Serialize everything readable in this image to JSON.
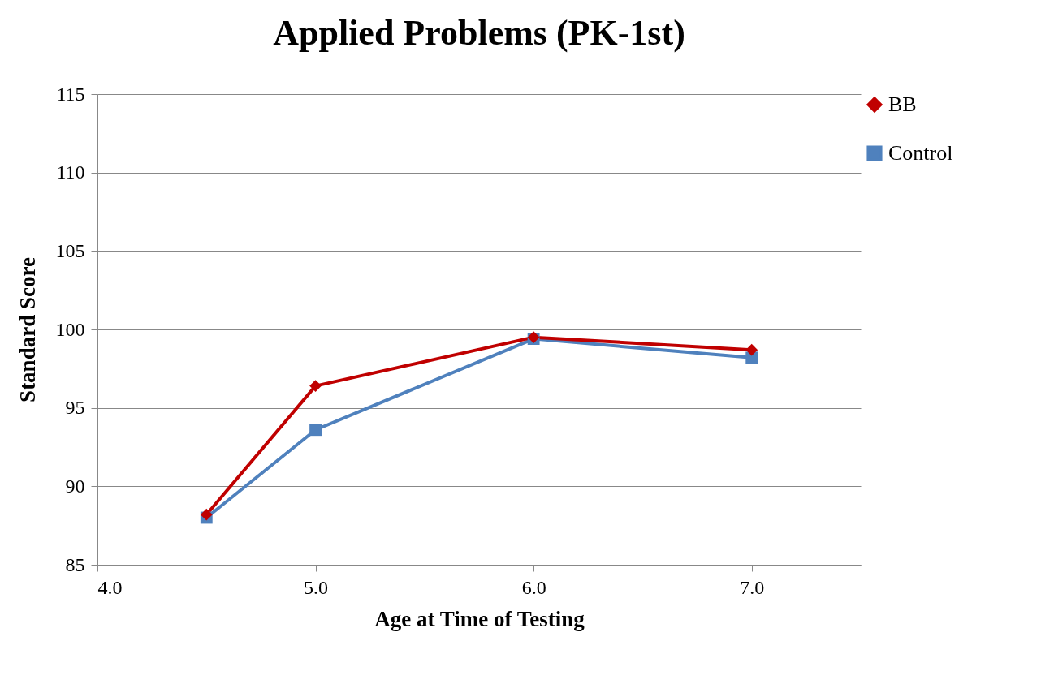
{
  "chart_data": {
    "type": "line",
    "title": "Applied Problems (PK-1st)",
    "xlabel": "Age at Time of Testing",
    "ylabel": "Standard Score",
    "x": [
      4.5,
      5.0,
      6.0,
      7.0
    ],
    "series": [
      {
        "name": "BB",
        "color": "#c00000",
        "marker": "diamond",
        "values": [
          88.2,
          96.4,
          99.5,
          98.7
        ]
      },
      {
        "name": "Control",
        "color": "#4f81bd",
        "marker": "square",
        "values": [
          88.0,
          93.6,
          99.4,
          98.2
        ]
      }
    ],
    "xlim": [
      4,
      7.5
    ],
    "xticks": [
      {
        "value": 4,
        "label": "4.0"
      },
      {
        "value": 5,
        "label": "5.0"
      },
      {
        "value": 6,
        "label": "6.0"
      },
      {
        "value": 7,
        "label": "7.0"
      }
    ],
    "ylim": [
      85,
      115
    ],
    "yticks": [
      85,
      90,
      95,
      100,
      105,
      110,
      115
    ],
    "grid": "y",
    "legend": "right"
  }
}
